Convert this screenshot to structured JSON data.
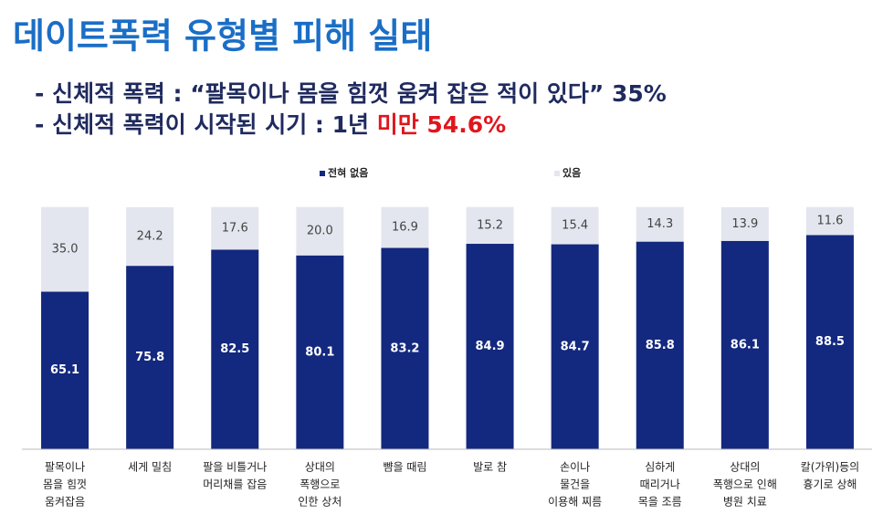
{
  "header": {
    "title": "데이트폭력 유형별 피해 실태",
    "bullets": [
      [
        "- 신체적 폭력 : “팔목이나 몸을 힘껏 움켜 잡은 적이 있다” 35%"
      ],
      [
        "- 신체적 폭력이 시작된 시기 : 1년",
        "미만 54.6%"
      ]
    ]
  },
  "chart_data": {
    "type": "stacked-bar",
    "categories": [
      [
        "팔목이나",
        "몸을 힘껏",
        "움켜잡음"
      ],
      [
        "세게 밀침"
      ],
      [
        "팔을 비틀거나",
        "머리채를 잡음"
      ],
      [
        "상대의",
        "폭행으로",
        "인한 상처"
      ],
      [
        "뺨을 때림"
      ],
      [
        "발로 참"
      ],
      [
        "손이나",
        "물건을",
        "이용해 찌름"
      ],
      [
        "심하게",
        "때리거나",
        "목을 조름"
      ],
      [
        "상대의",
        "폭행으로 인해",
        "병원 치료"
      ],
      [
        "칼(가위)등의",
        "흉기로 상해"
      ]
    ],
    "series": [
      {
        "name": "전혀 없음",
        "color": "#13287f",
        "values": [
          65.1,
          75.8,
          82.5,
          80.1,
          83.2,
          84.9,
          84.7,
          85.8,
          86.1,
          88.5
        ]
      },
      {
        "name": "있음",
        "color": "#e4e6ef",
        "values": [
          35.0,
          24.2,
          17.6,
          20.0,
          16.9,
          15.2,
          15.4,
          14.3,
          13.9,
          11.6
        ],
        "value_labels": [
          "35.0",
          "24.2",
          "17.6",
          "20.0",
          "16.9",
          "15.2",
          "15.4",
          "14.3",
          "13.9",
          "11.6"
        ]
      }
    ],
    "ylim": [
      0,
      100
    ]
  }
}
